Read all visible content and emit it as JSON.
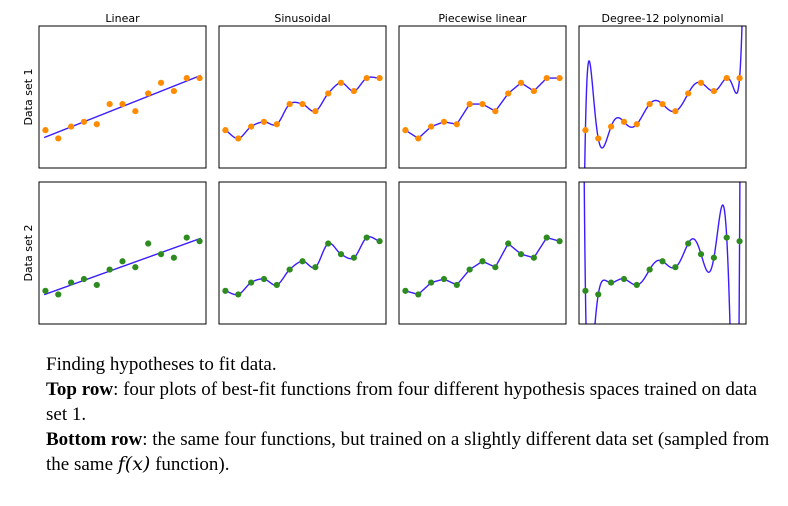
{
  "columns": [
    "Linear",
    "Sinusoidal",
    "Piecewise linear",
    "Degree-12 polynomial"
  ],
  "rows": [
    "Data set 1",
    "Data set 2"
  ],
  "colors": {
    "set1": "#ff8c00",
    "set2": "#2e8b20",
    "fit": "#3a1cff",
    "frame": "#000000"
  },
  "caption": {
    "line1": "Finding hypotheses to fit data.",
    "top_bold": "Top row",
    "top_text": ": four plots of best-fit functions from four different hypothesis spaces trained on data set 1.",
    "bottom_bold": "Bottom row",
    "bottom_text": ": the same four functions, but trained on a slightly different data set (sampled from the same ",
    "fx": "f(x)",
    "end": " function)."
  },
  "chart_data": {
    "type": "scatter",
    "x": [
      0,
      1,
      2,
      3,
      4,
      5,
      6,
      7,
      8,
      9,
      10,
      11,
      12
    ],
    "xlim": [
      -0.5,
      12.5
    ],
    "ylim": [
      -1,
      11
    ],
    "series": [
      {
        "y": [
          2.2,
          1.5,
          2.5,
          2.9,
          2.7,
          4.4,
          4.4,
          3.8,
          5.3,
          6.2,
          5.5,
          6.6,
          6.6
        ]
      },
      {
        "y": [
          1.8,
          1.5,
          2.5,
          2.8,
          2.3,
          3.6,
          4.3,
          3.8,
          5.8,
          4.9,
          4.6,
          6.3,
          6.0
        ]
      }
    ]
  }
}
